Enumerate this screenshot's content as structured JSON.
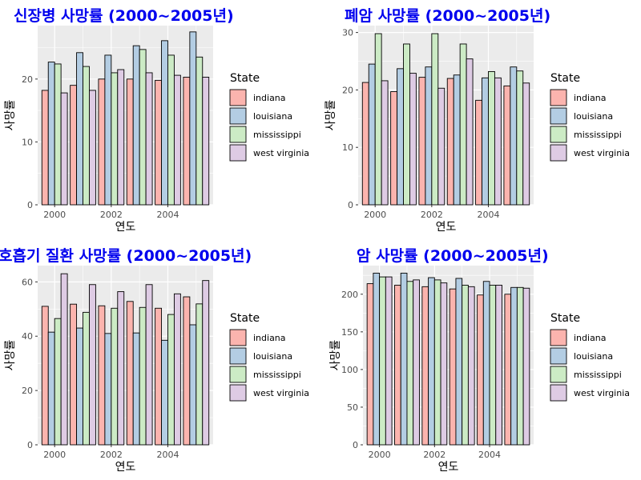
{
  "colors": {
    "indiana": "#fbb4ae",
    "louisiana": "#b3cde3",
    "mississippi": "#ccebc5",
    "west virginia": "#decbe4",
    "panel_bg": "#ebebeb",
    "grid": "#ffffff",
    "title": "#0000ee"
  },
  "chart_data": [
    {
      "type": "bar",
      "title": "신장병 사망률 (2000~2005년)",
      "xlabel": "연도",
      "ylabel": "사망률",
      "x": [
        2000,
        2001,
        2002,
        2003,
        2004,
        2005
      ],
      "xticks": [
        "2000",
        "2002",
        "2004"
      ],
      "yticks": [
        0,
        10,
        20
      ],
      "ylim": [
        0,
        28.5
      ],
      "grid": true,
      "legend": {
        "title": "State",
        "position": "right"
      },
      "series": [
        {
          "name": "indiana",
          "values": [
            18.2,
            19.0,
            20.0,
            20.0,
            19.8,
            20.3
          ]
        },
        {
          "name": "louisiana",
          "values": [
            22.7,
            24.2,
            23.8,
            25.3,
            26.1,
            27.5
          ]
        },
        {
          "name": "mississippi",
          "values": [
            22.4,
            22.0,
            21.0,
            24.7,
            23.8,
            23.5
          ]
        },
        {
          "name": "west virginia",
          "values": [
            17.8,
            18.2,
            21.5,
            21.0,
            20.6,
            20.3
          ]
        }
      ]
    },
    {
      "type": "bar",
      "title": "폐암 사망률 (2000~2005년)",
      "xlabel": "연도",
      "ylabel": "사망률",
      "x": [
        2000,
        2001,
        2002,
        2003,
        2004,
        2005
      ],
      "xticks": [
        "2000",
        "2002",
        "2004"
      ],
      "yticks": [
        0,
        10,
        20,
        30
      ],
      "ylim": [
        0,
        31.2
      ],
      "grid": true,
      "legend": {
        "title": "State",
        "position": "right"
      },
      "series": [
        {
          "name": "indiana",
          "values": [
            21.3,
            19.7,
            22.2,
            22.0,
            18.2,
            20.7
          ]
        },
        {
          "name": "louisiana",
          "values": [
            24.5,
            23.7,
            24.0,
            22.6,
            22.1,
            24.0
          ]
        },
        {
          "name": "mississippi",
          "values": [
            29.8,
            28.0,
            29.8,
            28.0,
            23.2,
            23.3
          ]
        },
        {
          "name": "west virginia",
          "values": [
            21.6,
            22.9,
            20.3,
            25.4,
            22.1,
            21.2
          ]
        }
      ]
    },
    {
      "type": "bar",
      "title": "호흡기 질환 사망률 (2000~2005년)",
      "xlabel": "연도",
      "ylabel": "사망률",
      "x": [
        2000,
        2001,
        2002,
        2003,
        2004,
        2005
      ],
      "xticks": [
        "2000",
        "2002",
        "2004"
      ],
      "yticks": [
        0,
        20,
        40,
        60
      ],
      "ylim": [
        0,
        66
      ],
      "grid": true,
      "legend": {
        "title": "State",
        "position": "right"
      },
      "series": [
        {
          "name": "indiana",
          "values": [
            51.0,
            51.8,
            51.2,
            52.8,
            50.3,
            54.5
          ]
        },
        {
          "name": "louisiana",
          "values": [
            41.5,
            43.0,
            41.0,
            41.2,
            38.5,
            44.2
          ]
        },
        {
          "name": "mississippi",
          "values": [
            46.5,
            48.8,
            50.3,
            50.6,
            48.0,
            51.9
          ]
        },
        {
          "name": "west virginia",
          "values": [
            63.0,
            59.0,
            56.4,
            59.0,
            55.6,
            60.5
          ]
        }
      ]
    },
    {
      "type": "bar",
      "title": "암 사망률 (2000~2005년)",
      "xlabel": "연도",
      "ylabel": "사망률",
      "x": [
        2000,
        2001,
        2002,
        2003,
        2004,
        2005
      ],
      "xticks": [
        "2000",
        "2002",
        "2004"
      ],
      "yticks": [
        0,
        50,
        100,
        150,
        200
      ],
      "ylim": [
        0,
        238
      ],
      "grid": true,
      "legend": {
        "title": "State",
        "position": "right"
      },
      "series": [
        {
          "name": "indiana",
          "values": [
            214,
            212,
            210,
            207,
            199,
            200
          ]
        },
        {
          "name": "louisiana",
          "values": [
            228,
            228,
            222,
            221,
            217,
            209
          ]
        },
        {
          "name": "mississippi",
          "values": [
            223,
            217,
            219,
            212,
            212,
            209
          ]
        },
        {
          "name": "west virginia",
          "values": [
            223,
            219,
            215,
            210,
            212,
            208
          ]
        }
      ]
    }
  ]
}
